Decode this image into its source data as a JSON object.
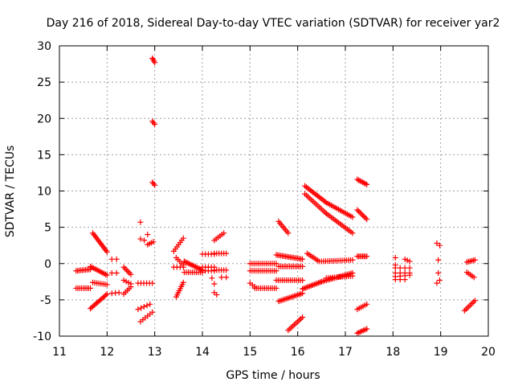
{
  "chart_data": {
    "type": "scatter",
    "title": "Day 216 of 2018, Sidereal Day-to-day VTEC variation (SDTVAR) for receiver yar2",
    "xlabel": "GPS time / hours",
    "ylabel": "SDTVAR / TECUs",
    "xlim": [
      11,
      20
    ],
    "ylim": [
      -10,
      30
    ],
    "xticks": [
      "11",
      "12",
      "13",
      "14",
      "15",
      "16",
      "17",
      "18",
      "19",
      "20"
    ],
    "yticks": [
      "-10",
      "-5",
      "0",
      "5",
      "10",
      "15",
      "20",
      "25",
      "30"
    ],
    "grid": true,
    "marker": "+",
    "color": "#ff0000",
    "series": [
      {
        "name": "SDTVAR",
        "segments": [
          {
            "t0": 11.35,
            "t1": 11.65,
            "v0": -1.0,
            "v1": -0.8,
            "n": 10
          },
          {
            "t0": 11.35,
            "t1": 11.65,
            "v0": -3.4,
            "v1": -3.4,
            "n": 9
          },
          {
            "t0": 11.7,
            "t1": 12.0,
            "v0": 4.2,
            "v1": 1.6,
            "n": 14
          },
          {
            "t0": 11.65,
            "t1": 12.0,
            "v0": -0.4,
            "v1": -1.6,
            "n": 12
          },
          {
            "t0": 11.7,
            "t1": 12.0,
            "v0": -2.6,
            "v1": -2.9,
            "n": 8
          },
          {
            "t0": 11.65,
            "t1": 12.0,
            "v0": -6.2,
            "v1": -4.2,
            "n": 14
          },
          {
            "t0": 12.1,
            "t1": 12.2,
            "v0": 0.6,
            "v1": 0.6,
            "n": 2
          },
          {
            "t0": 12.1,
            "t1": 12.2,
            "v0": -1.3,
            "v1": -1.3,
            "n": 2
          },
          {
            "t0": 12.1,
            "t1": 12.25,
            "v0": -4.1,
            "v1": -4.0,
            "n": 3
          },
          {
            "t0": 12.35,
            "t1": 12.5,
            "v0": -0.5,
            "v1": -1.5,
            "n": 6
          },
          {
            "t0": 12.35,
            "t1": 12.5,
            "v0": -2.3,
            "v1": -2.8,
            "n": 4
          },
          {
            "t0": 12.35,
            "t1": 12.5,
            "v0": -4.2,
            "v1": -3.2,
            "n": 5
          },
          {
            "t0": 12.7,
            "t1": 12.7,
            "v0": 5.7,
            "v1": 5.7,
            "n": 1
          },
          {
            "t0": 12.7,
            "t1": 12.78,
            "v0": 3.4,
            "v1": 3.2,
            "n": 2
          },
          {
            "t0": 12.85,
            "t1": 12.85,
            "v0": 4.0,
            "v1": 4.0,
            "n": 1
          },
          {
            "t0": 12.85,
            "t1": 12.97,
            "v0": 2.6,
            "v1": 3.0,
            "n": 4
          },
          {
            "t0": 12.65,
            "t1": 12.95,
            "v0": -2.7,
            "v1": -2.7,
            "n": 6
          },
          {
            "t0": 12.65,
            "t1": 12.9,
            "v0": -6.3,
            "v1": -5.6,
            "n": 5
          },
          {
            "t0": 12.7,
            "t1": 12.95,
            "v0": -8.0,
            "v1": -6.7,
            "n": 6
          },
          {
            "t0": 12.95,
            "t1": 13.0,
            "v0": 28.3,
            "v1": 27.7,
            "n": 4
          },
          {
            "t0": 12.95,
            "t1": 13.0,
            "v0": 19.6,
            "v1": 19.2,
            "n": 3
          },
          {
            "t0": 12.95,
            "t1": 13.0,
            "v0": 11.2,
            "v1": 10.8,
            "n": 3
          },
          {
            "t0": 13.4,
            "t1": 13.6,
            "v0": 1.7,
            "v1": 3.5,
            "n": 7
          },
          {
            "t0": 13.45,
            "t1": 13.6,
            "v0": 0.8,
            "v1": -0.2,
            "n": 5
          },
          {
            "t0": 13.4,
            "t1": 13.6,
            "v0": -0.5,
            "v1": -0.5,
            "n": 4
          },
          {
            "t0": 13.45,
            "t1": 13.6,
            "v0": -4.6,
            "v1": -2.6,
            "n": 8
          },
          {
            "t0": 13.62,
            "t1": 14.0,
            "v0": 0.3,
            "v1": -0.9,
            "n": 14
          },
          {
            "t0": 13.62,
            "t1": 14.0,
            "v0": -1.2,
            "v1": -1.2,
            "n": 10
          },
          {
            "t0": 14.0,
            "t1": 14.25,
            "v0": 1.3,
            "v1": 1.3,
            "n": 5
          },
          {
            "t0": 14.0,
            "t1": 14.25,
            "v0": -0.5,
            "v1": -0.5,
            "n": 5
          },
          {
            "t0": 14.0,
            "t1": 14.25,
            "v0": -1.0,
            "v1": -1.0,
            "n": 5
          },
          {
            "t0": 14.2,
            "t1": 14.25,
            "v0": -2.0,
            "v1": -2.8,
            "n": 2
          },
          {
            "t0": 14.25,
            "t1": 14.45,
            "v0": 3.2,
            "v1": 4.2,
            "n": 6
          },
          {
            "t0": 14.25,
            "t1": 14.5,
            "v0": 1.4,
            "v1": 1.4,
            "n": 6
          },
          {
            "t0": 14.25,
            "t1": 14.5,
            "v0": -0.9,
            "v1": -0.9,
            "n": 6
          },
          {
            "t0": 14.4,
            "t1": 14.5,
            "v0": -1.9,
            "v1": -1.9,
            "n": 2
          },
          {
            "t0": 14.25,
            "t1": 14.3,
            "v0": -4.0,
            "v1": -4.3,
            "n": 2
          },
          {
            "t0": 15.0,
            "t1": 15.55,
            "v0": 0.0,
            "v1": 0.0,
            "n": 14
          },
          {
            "t0": 15.0,
            "t1": 15.55,
            "v0": -1.0,
            "v1": -1.0,
            "n": 14
          },
          {
            "t0": 15.0,
            "t1": 15.1,
            "v0": -2.7,
            "v1": -3.2,
            "n": 3
          },
          {
            "t0": 15.1,
            "t1": 15.55,
            "v0": -3.4,
            "v1": -3.4,
            "n": 12
          },
          {
            "t0": 15.6,
            "t1": 15.8,
            "v0": 5.8,
            "v1": 4.2,
            "n": 8
          },
          {
            "t0": 15.55,
            "t1": 16.1,
            "v0": 1.2,
            "v1": 0.6,
            "n": 18
          },
          {
            "t0": 15.6,
            "t1": 16.1,
            "v0": -0.4,
            "v1": -0.4,
            "n": 14
          },
          {
            "t0": 15.55,
            "t1": 16.1,
            "v0": -2.3,
            "v1": -2.3,
            "n": 14
          },
          {
            "t0": 15.6,
            "t1": 16.1,
            "v0": -5.2,
            "v1": -4.1,
            "n": 16
          },
          {
            "t0": 15.8,
            "t1": 16.1,
            "v0": -9.2,
            "v1": -7.4,
            "n": 10
          },
          {
            "t0": 16.15,
            "t1": 16.6,
            "v0": 10.7,
            "v1": 8.4,
            "n": 16
          },
          {
            "t0": 16.6,
            "t1": 17.15,
            "v0": 8.4,
            "v1": 6.4,
            "n": 16
          },
          {
            "t0": 16.15,
            "t1": 16.6,
            "v0": 9.6,
            "v1": 6.9,
            "n": 14
          },
          {
            "t0": 16.6,
            "t1": 17.15,
            "v0": 6.9,
            "v1": 4.2,
            "n": 16
          },
          {
            "t0": 16.2,
            "t1": 16.45,
            "v0": 1.4,
            "v1": 0.3,
            "n": 8
          },
          {
            "t0": 16.5,
            "t1": 17.15,
            "v0": 0.3,
            "v1": 0.5,
            "n": 16
          },
          {
            "t0": 16.1,
            "t1": 16.5,
            "v0": -3.5,
            "v1": -2.5,
            "n": 14
          },
          {
            "t0": 16.5,
            "t1": 17.15,
            "v0": -2.5,
            "v1": -1.3,
            "n": 20
          },
          {
            "t0": 16.6,
            "t1": 17.15,
            "v0": -2.0,
            "v1": -1.7,
            "n": 14
          },
          {
            "t0": 17.25,
            "t1": 17.45,
            "v0": 11.6,
            "v1": 10.9,
            "n": 8
          },
          {
            "t0": 17.25,
            "t1": 17.45,
            "v0": 7.4,
            "v1": 6.1,
            "n": 8
          },
          {
            "t0": 17.25,
            "t1": 17.45,
            "v0": 1.0,
            "v1": 1.0,
            "n": 8
          },
          {
            "t0": 17.25,
            "t1": 17.45,
            "v0": -6.3,
            "v1": -5.6,
            "n": 6
          },
          {
            "t0": 17.25,
            "t1": 17.45,
            "v0": -9.6,
            "v1": -9.0,
            "n": 7
          },
          {
            "t0": 18.05,
            "t1": 18.05,
            "v0": 0.8,
            "v1": 0.8,
            "n": 1
          },
          {
            "t0": 18.25,
            "t1": 18.35,
            "v0": 0.6,
            "v1": 0.3,
            "n": 3
          },
          {
            "t0": 18.05,
            "t1": 18.05,
            "v0": -0.2,
            "v1": -0.2,
            "n": 1
          },
          {
            "t0": 18.05,
            "t1": 18.35,
            "v0": -0.6,
            "v1": -0.6,
            "n": 4
          },
          {
            "t0": 18.05,
            "t1": 18.35,
            "v0": -1.3,
            "v1": -1.3,
            "n": 4
          },
          {
            "t0": 18.05,
            "t1": 18.35,
            "v0": -1.8,
            "v1": -1.6,
            "n": 4
          },
          {
            "t0": 18.05,
            "t1": 18.25,
            "v0": -2.2,
            "v1": -2.2,
            "n": 3
          },
          {
            "t0": 18.92,
            "t1": 18.98,
            "v0": 2.8,
            "v1": 2.5,
            "n": 2
          },
          {
            "t0": 18.95,
            "t1": 18.95,
            "v0": 0.5,
            "v1": 0.5,
            "n": 1
          },
          {
            "t0": 18.95,
            "t1": 18.95,
            "v0": -1.3,
            "v1": -1.3,
            "n": 1
          },
          {
            "t0": 18.92,
            "t1": 18.98,
            "v0": -2.7,
            "v1": -2.3,
            "n": 2
          },
          {
            "t0": 19.55,
            "t1": 19.72,
            "v0": 0.2,
            "v1": 0.5,
            "n": 6
          },
          {
            "t0": 19.55,
            "t1": 19.7,
            "v0": -1.2,
            "v1": -1.9,
            "n": 5
          },
          {
            "t0": 19.5,
            "t1": 19.72,
            "v0": -6.5,
            "v1": -5.1,
            "n": 8
          }
        ]
      }
    ]
  }
}
